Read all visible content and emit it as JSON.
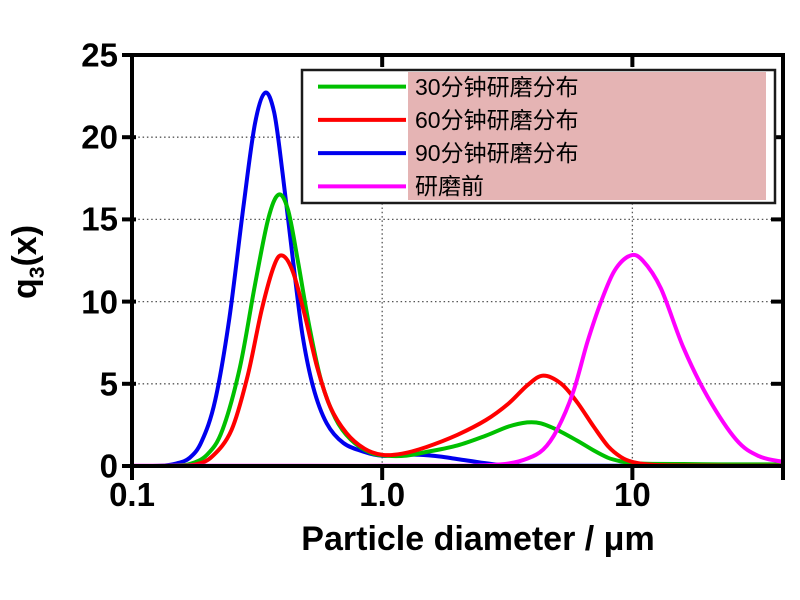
{
  "figure": {
    "background": "#ffffff",
    "x_axis": {
      "label": "Particle diameter / μm",
      "scale": "log",
      "range": [
        0.1,
        40
      ],
      "tick_labels": [
        "0.1",
        "1.0",
        "10"
      ],
      "tick_values": [
        0.1,
        1.0,
        10
      ]
    },
    "y_axis": {
      "label": "q3(x)",
      "label_parts": {
        "base": "q",
        "sub": "3",
        "rest": "(x)"
      },
      "range": [
        0,
        25
      ],
      "tick_labels": [
        "0",
        "5",
        "10",
        "15",
        "20",
        "25"
      ],
      "tick_values": [
        0,
        5,
        10,
        15,
        20,
        25
      ]
    },
    "grid": {
      "x_values": [
        1.0,
        10
      ],
      "y_values": [
        5,
        10,
        15,
        20
      ],
      "style": "dotted",
      "color": "#555555"
    },
    "legend": {
      "position": "top-right",
      "border_color": "#1a1a1a",
      "fill_color": "#ffffff",
      "highlight_color": "#e5b4b4",
      "items": [
        {
          "label": "30分钟研磨分布",
          "color": "#00c000"
        },
        {
          "label": "60分钟研磨分布",
          "color": "#ff0000"
        },
        {
          "label": "90分钟研磨分布",
          "color": "#0000ee"
        },
        {
          "label": "研磨前",
          "color": "#ff00ff"
        }
      ]
    }
  },
  "chart_data": {
    "type": "line",
    "title": "",
    "xlabel": "Particle diameter / μm",
    "ylabel": "q3(x)",
    "x_scale": "log",
    "xlim": [
      0.1,
      40
    ],
    "ylim": [
      0,
      25
    ],
    "x_ticks": [
      0.1,
      1.0,
      10
    ],
    "y_ticks": [
      0,
      5,
      10,
      15,
      20,
      25
    ],
    "legend_position": "top-right",
    "grid": true,
    "series": [
      {
        "name": "30分钟研磨分布",
        "color": "#00c000",
        "peaks": [
          {
            "x": 0.385,
            "y": 16.5
          },
          {
            "x": 3.9,
            "y": 2.65
          }
        ],
        "points": [
          [
            0.1,
            0
          ],
          [
            0.14,
            0.02
          ],
          [
            0.17,
            0.12
          ],
          [
            0.2,
            0.7
          ],
          [
            0.23,
            2.2
          ],
          [
            0.27,
            6.0
          ],
          [
            0.31,
            11.0
          ],
          [
            0.35,
            15.0
          ],
          [
            0.385,
            16.5
          ],
          [
            0.42,
            15.6
          ],
          [
            0.46,
            12.5
          ],
          [
            0.51,
            8.6
          ],
          [
            0.57,
            5.2
          ],
          [
            0.65,
            2.9
          ],
          [
            0.75,
            1.6
          ],
          [
            0.9,
            0.8
          ],
          [
            1.05,
            0.62
          ],
          [
            1.25,
            0.63
          ],
          [
            1.5,
            0.85
          ],
          [
            2.0,
            1.25
          ],
          [
            2.6,
            1.85
          ],
          [
            3.2,
            2.4
          ],
          [
            3.8,
            2.65
          ],
          [
            4.3,
            2.6
          ],
          [
            5.0,
            2.2
          ],
          [
            6.0,
            1.55
          ],
          [
            7.0,
            0.95
          ],
          [
            8.0,
            0.5
          ],
          [
            9.0,
            0.28
          ],
          [
            10,
            0.18
          ],
          [
            12,
            0.13
          ],
          [
            16,
            0.12
          ],
          [
            22,
            0.1
          ],
          [
            30,
            0.1
          ],
          [
            40,
            0.1
          ]
        ]
      },
      {
        "name": "60分钟研磨分布",
        "color": "#ff0000",
        "peaks": [
          {
            "x": 0.4,
            "y": 12.8
          },
          {
            "x": 4.4,
            "y": 5.5
          }
        ],
        "points": [
          [
            0.1,
            0
          ],
          [
            0.15,
            0.01
          ],
          [
            0.18,
            0.1
          ],
          [
            0.21,
            0.6
          ],
          [
            0.25,
            2.2
          ],
          [
            0.29,
            5.5
          ],
          [
            0.33,
            9.5
          ],
          [
            0.37,
            12.2
          ],
          [
            0.4,
            12.8
          ],
          [
            0.44,
            11.8
          ],
          [
            0.49,
            9.2
          ],
          [
            0.55,
            6.0
          ],
          [
            0.62,
            3.6
          ],
          [
            0.72,
            2.0
          ],
          [
            0.85,
            1.05
          ],
          [
            1.0,
            0.68
          ],
          [
            1.2,
            0.75
          ],
          [
            1.5,
            1.15
          ],
          [
            2.0,
            1.9
          ],
          [
            2.6,
            2.8
          ],
          [
            3.2,
            3.8
          ],
          [
            3.8,
            4.9
          ],
          [
            4.4,
            5.5
          ],
          [
            5.2,
            5.0
          ],
          [
            6.0,
            3.9
          ],
          [
            7.0,
            2.4
          ],
          [
            8.0,
            1.2
          ],
          [
            9.0,
            0.55
          ],
          [
            10,
            0.25
          ],
          [
            12,
            0.08
          ],
          [
            16,
            0.03
          ],
          [
            25,
            0.02
          ],
          [
            40,
            0.02
          ]
        ]
      },
      {
        "name": "90分钟研磨分布",
        "color": "#0000ee",
        "peaks": [
          {
            "x": 0.34,
            "y": 22.7
          }
        ],
        "points": [
          [
            0.1,
            0
          ],
          [
            0.13,
            0.02
          ],
          [
            0.15,
            0.15
          ],
          [
            0.17,
            0.5
          ],
          [
            0.19,
            1.5
          ],
          [
            0.215,
            4.0
          ],
          [
            0.245,
            9.0
          ],
          [
            0.28,
            16.0
          ],
          [
            0.31,
            20.8
          ],
          [
            0.34,
            22.7
          ],
          [
            0.37,
            21.5
          ],
          [
            0.4,
            17.8
          ],
          [
            0.44,
            12.5
          ],
          [
            0.48,
            8.0
          ],
          [
            0.53,
            4.8
          ],
          [
            0.6,
            2.6
          ],
          [
            0.7,
            1.4
          ],
          [
            0.85,
            0.85
          ],
          [
            1.0,
            0.62
          ],
          [
            1.2,
            0.68
          ],
          [
            1.4,
            0.68
          ],
          [
            1.7,
            0.58
          ],
          [
            2.0,
            0.42
          ],
          [
            2.5,
            0.2
          ],
          [
            3.0,
            0.06
          ],
          [
            3.6,
            0.02
          ],
          [
            5,
            0.01
          ],
          [
            10,
            0.01
          ],
          [
            40,
            0.01
          ]
        ]
      },
      {
        "name": "研磨前",
        "color": "#ff00ff",
        "peaks": [
          {
            "x": 9.8,
            "y": 12.8
          }
        ],
        "points": [
          [
            0.1,
            0.01
          ],
          [
            0.5,
            0.01
          ],
          [
            1.0,
            0.01
          ],
          [
            2.0,
            0.02
          ],
          [
            2.6,
            0.05
          ],
          [
            3.2,
            0.15
          ],
          [
            3.8,
            0.45
          ],
          [
            4.4,
            1.0
          ],
          [
            5.0,
            2.2
          ],
          [
            5.8,
            4.5
          ],
          [
            6.6,
            7.5
          ],
          [
            7.5,
            10.0
          ],
          [
            8.5,
            11.9
          ],
          [
            9.8,
            12.8
          ],
          [
            11,
            12.5
          ],
          [
            13,
            10.8
          ],
          [
            16,
            7.2
          ],
          [
            20,
            4.2
          ],
          [
            26,
            1.6
          ],
          [
            32,
            0.6
          ],
          [
            40,
            0.25
          ]
        ]
      }
    ]
  }
}
